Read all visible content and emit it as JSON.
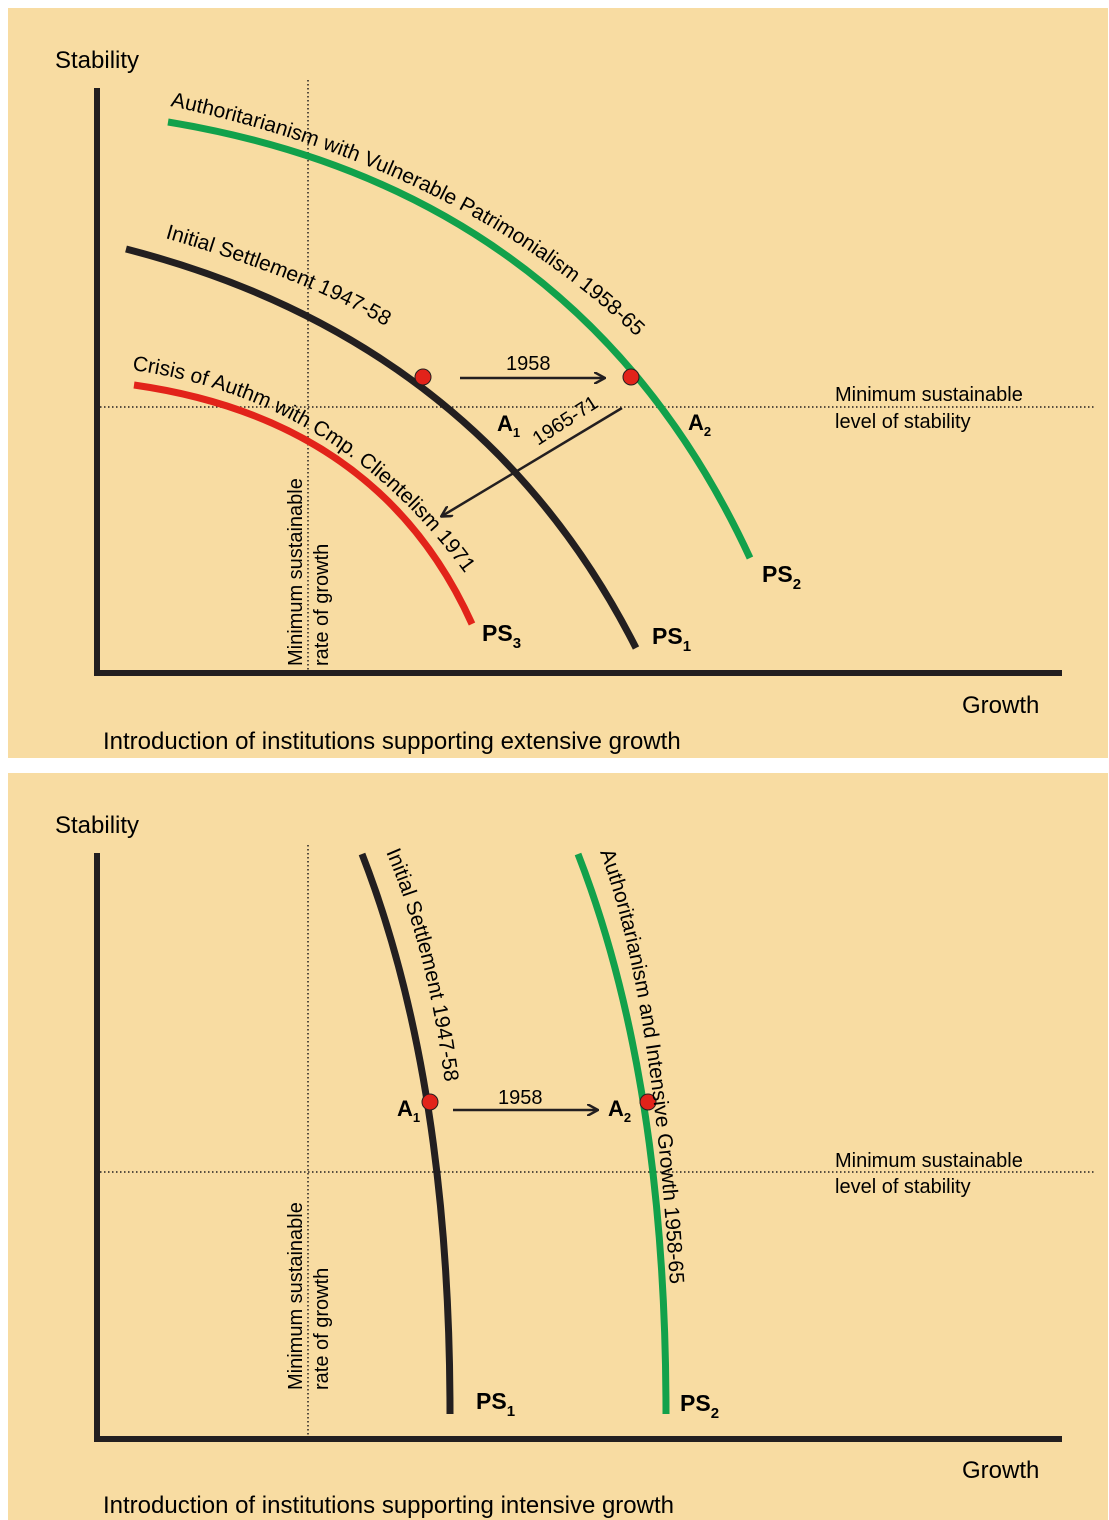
{
  "colors": {
    "background": "#f8dca2",
    "axis": "#231f20",
    "ps1": "#231f20",
    "ps2": "#12a14b",
    "ps3": "#e2231a",
    "point": "#e2231a"
  },
  "top": {
    "y_axis_label": "Stability",
    "x_axis_label": "Growth",
    "caption": "Introduction of institutions supporting extensive growth",
    "min_stability_line1": "Minimum sustainable",
    "min_stability_line2": "level of stability",
    "min_growth_line1": "Minimum sustainable",
    "min_growth_line2": "rate of growth",
    "curve_ps2_label": "Authoritarianism with Vulnerable Patrimonialism 1958-65",
    "curve_ps1_label": "Initial Settlement 1947-58",
    "curve_ps3_label": "Crisis of Authm with Cmp. Clientelism 1971",
    "ps1": "PS",
    "ps1_sub": "1",
    "ps2": "PS",
    "ps2_sub": "2",
    "ps3": "PS",
    "ps3_sub": "3",
    "point_a1": "A",
    "point_a1_sub": "1",
    "point_a2": "A",
    "point_a2_sub": "2",
    "arrow_1958": "1958",
    "arrow_1965": "1965-71"
  },
  "bottom": {
    "y_axis_label": "Stability",
    "x_axis_label": "Growth",
    "caption": "Introduction of institutions supporting intensive growth",
    "min_stability_line1": "Minimum sustainable",
    "min_stability_line2": "level of stability",
    "min_growth_line1": "Minimum sustainable",
    "min_growth_line2": "rate of growth",
    "curve_ps1_label": "Initial Settlement 1947-58",
    "curve_ps2_label": "Authoritarianism and Intensive Growth 1958-65",
    "ps1": "PS",
    "ps1_sub": "1",
    "ps2": "PS",
    "ps2_sub": "2",
    "point_a1": "A",
    "point_a1_sub": "1",
    "point_a2": "A",
    "point_a2_sub": "2",
    "arrow_1958": "1958"
  }
}
